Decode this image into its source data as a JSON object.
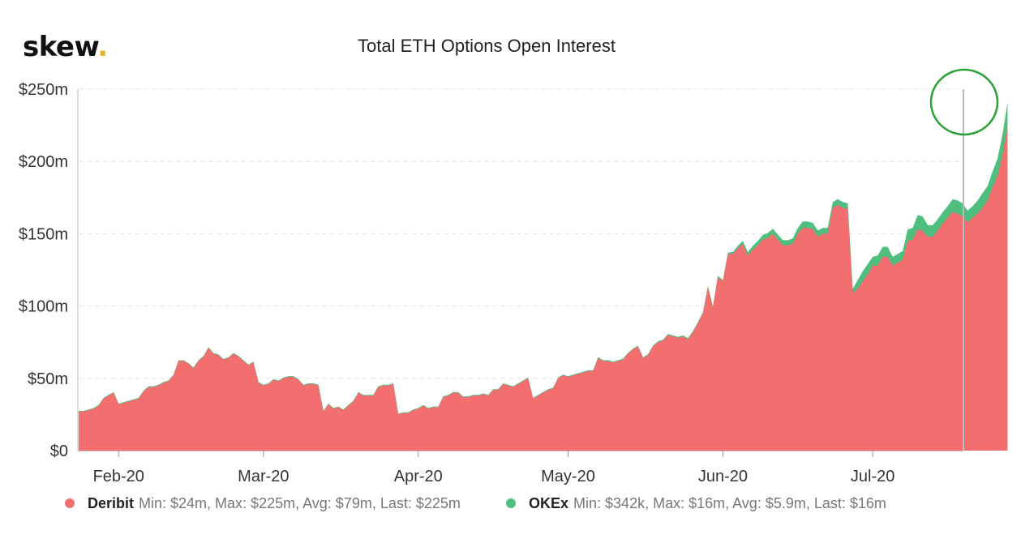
{
  "brand": {
    "name": "skew",
    "dot": "."
  },
  "chart_data": {
    "type": "area",
    "stacked": true,
    "title": "Total ETH Options Open Interest",
    "xlabel": "",
    "ylabel": "",
    "x_ticks": [
      "Feb-20",
      "Mar-20",
      "Apr-20",
      "May-20",
      "Jun-20",
      "Jul-20"
    ],
    "x_tick_days": [
      13,
      42,
      73,
      103,
      134,
      164
    ],
    "x_range_days": [
      5,
      182
    ],
    "y_ticks": [
      "$0",
      "$50m",
      "$100m",
      "$150m",
      "$200m",
      "$250m"
    ],
    "y_tick_values": [
      0,
      50,
      100,
      150,
      200,
      250
    ],
    "ylim": [
      0,
      250
    ],
    "grid": true,
    "legend_position": "bottom",
    "annotation": "green circle highlighting the latest value",
    "series": [
      {
        "name": "Deribit",
        "color": "#f36e6e",
        "stats": "Min: $24m, Max: $225m, Avg: $79m, Last: $225m",
        "points": [
          [
            5,
            27
          ],
          [
            6,
            27
          ],
          [
            7,
            28
          ],
          [
            8,
            29
          ],
          [
            9,
            31
          ],
          [
            10,
            36
          ],
          [
            11,
            38
          ],
          [
            12,
            40
          ],
          [
            13,
            32
          ],
          [
            14,
            33
          ],
          [
            15,
            34
          ],
          [
            16,
            35
          ],
          [
            17,
            36
          ],
          [
            18,
            41
          ],
          [
            19,
            44
          ],
          [
            20,
            44
          ],
          [
            21,
            45
          ],
          [
            22,
            47
          ],
          [
            23,
            48
          ],
          [
            24,
            52
          ],
          [
            25,
            62
          ],
          [
            26,
            62
          ],
          [
            27,
            60
          ],
          [
            28,
            57
          ],
          [
            29,
            62
          ],
          [
            30,
            65
          ],
          [
            31,
            71
          ],
          [
            32,
            67
          ],
          [
            33,
            66
          ],
          [
            34,
            63
          ],
          [
            35,
            64
          ],
          [
            36,
            67
          ],
          [
            37,
            65
          ],
          [
            38,
            62
          ],
          [
            39,
            59
          ],
          [
            40,
            61
          ],
          [
            41,
            47
          ],
          [
            42,
            45
          ],
          [
            43,
            46
          ],
          [
            44,
            49
          ],
          [
            45,
            48
          ],
          [
            46,
            50
          ],
          [
            47,
            51
          ],
          [
            48,
            51
          ],
          [
            49,
            49
          ],
          [
            50,
            45
          ],
          [
            51,
            46
          ],
          [
            52,
            46
          ],
          [
            53,
            45
          ],
          [
            54,
            27
          ],
          [
            55,
            32
          ],
          [
            56,
            29
          ],
          [
            57,
            30
          ],
          [
            58,
            28
          ],
          [
            59,
            31
          ],
          [
            60,
            34
          ],
          [
            61,
            40
          ],
          [
            62,
            38
          ],
          [
            63,
            38
          ],
          [
            64,
            38
          ],
          [
            65,
            44
          ],
          [
            66,
            45
          ],
          [
            67,
            45
          ],
          [
            68,
            46
          ],
          [
            69,
            25
          ],
          [
            70,
            26
          ],
          [
            71,
            26
          ],
          [
            72,
            28
          ],
          [
            73,
            29
          ],
          [
            74,
            31
          ],
          [
            75,
            29
          ],
          [
            76,
            30
          ],
          [
            77,
            30
          ],
          [
            78,
            37
          ],
          [
            79,
            38
          ],
          [
            80,
            40
          ],
          [
            81,
            40
          ],
          [
            82,
            37
          ],
          [
            83,
            37
          ],
          [
            84,
            38
          ],
          [
            85,
            38
          ],
          [
            86,
            39
          ],
          [
            87,
            38
          ],
          [
            88,
            42
          ],
          [
            89,
            42
          ],
          [
            90,
            46
          ],
          [
            91,
            45
          ],
          [
            92,
            44
          ],
          [
            93,
            46
          ],
          [
            94,
            48
          ],
          [
            95,
            50
          ],
          [
            96,
            36
          ],
          [
            97,
            38
          ],
          [
            98,
            40
          ],
          [
            99,
            42
          ],
          [
            100,
            43
          ],
          [
            101,
            50
          ],
          [
            102,
            52
          ],
          [
            103,
            51
          ],
          [
            104,
            52
          ],
          [
            105,
            53
          ],
          [
            106,
            54
          ],
          [
            107,
            55
          ],
          [
            108,
            55
          ],
          [
            109,
            64
          ],
          [
            110,
            62
          ],
          [
            111,
            62
          ],
          [
            112,
            61
          ],
          [
            113,
            62
          ],
          [
            114,
            63
          ],
          [
            115,
            67
          ],
          [
            116,
            70
          ],
          [
            117,
            72
          ],
          [
            118,
            64
          ],
          [
            119,
            66
          ],
          [
            120,
            72
          ],
          [
            121,
            75
          ],
          [
            122,
            76
          ],
          [
            123,
            80
          ],
          [
            124,
            79
          ],
          [
            125,
            78
          ],
          [
            126,
            79
          ],
          [
            127,
            77
          ],
          [
            128,
            82
          ],
          [
            129,
            88
          ],
          [
            130,
            95
          ],
          [
            131,
            113
          ],
          [
            132,
            99
          ],
          [
            133,
            120
          ],
          [
            134,
            117
          ],
          [
            135,
            136
          ],
          [
            136,
            136
          ],
          [
            137,
            140
          ],
          [
            138,
            143
          ],
          [
            139,
            135
          ],
          [
            140,
            139
          ],
          [
            141,
            142
          ],
          [
            142,
            146
          ],
          [
            143,
            147
          ],
          [
            144,
            150
          ],
          [
            145,
            146
          ],
          [
            146,
            142
          ],
          [
            147,
            142
          ],
          [
            148,
            143
          ],
          [
            149,
            150
          ],
          [
            150,
            154
          ],
          [
            151,
            154
          ],
          [
            152,
            153
          ],
          [
            153,
            148
          ],
          [
            154,
            150
          ],
          [
            155,
            150
          ],
          [
            156,
            168
          ],
          [
            157,
            170
          ],
          [
            158,
            168
          ],
          [
            159,
            167
          ],
          [
            160,
            109
          ],
          [
            161,
            112
          ],
          [
            162,
            117
          ],
          [
            163,
            122
          ],
          [
            164,
            128
          ],
          [
            165,
            128
          ],
          [
            166,
            134
          ],
          [
            167,
            134
          ],
          [
            168,
            128
          ],
          [
            169,
            130
          ],
          [
            170,
            132
          ],
          [
            171,
            145
          ],
          [
            172,
            146
          ],
          [
            173,
            153
          ],
          [
            174,
            152
          ],
          [
            175,
            148
          ],
          [
            176,
            148
          ],
          [
            177,
            152
          ],
          [
            178,
            157
          ],
          [
            179,
            161
          ],
          [
            180,
            165
          ],
          [
            181,
            164
          ],
          [
            182,
            162
          ],
          [
            183,
            158
          ],
          [
            184,
            161
          ],
          [
            185,
            164
          ],
          [
            186,
            168
          ],
          [
            187,
            173
          ],
          [
            188,
            182
          ],
          [
            189,
            190
          ],
          [
            190,
            205
          ],
          [
            191,
            225
          ]
        ]
      },
      {
        "name": "OKEx",
        "color": "#4fbf80",
        "stats": "Min: $342k, Max: $16m, Avg: $5.9m, Last: $16m",
        "points": [
          [
            5,
            0.5
          ],
          [
            60,
            0.5
          ],
          [
            100,
            0.5
          ],
          [
            120,
            0.6
          ],
          [
            130,
            0.8
          ],
          [
            135,
            1
          ],
          [
            138,
            2
          ],
          [
            141,
            3
          ],
          [
            143,
            3.5
          ],
          [
            145,
            3.5
          ],
          [
            147,
            3.5
          ],
          [
            149,
            4
          ],
          [
            150,
            4.5
          ],
          [
            152,
            4.5
          ],
          [
            154,
            4
          ],
          [
            156,
            4
          ],
          [
            158,
            4
          ],
          [
            159,
            4
          ],
          [
            160,
            3
          ],
          [
            161,
            6
          ],
          [
            162,
            7
          ],
          [
            163,
            7
          ],
          [
            164,
            6
          ],
          [
            165,
            7
          ],
          [
            166,
            7
          ],
          [
            167,
            7
          ],
          [
            168,
            6
          ],
          [
            169,
            6
          ],
          [
            170,
            6
          ],
          [
            171,
            8
          ],
          [
            172,
            8
          ],
          [
            173,
            10
          ],
          [
            174,
            10
          ],
          [
            175,
            8
          ],
          [
            176,
            8
          ],
          [
            177,
            8
          ],
          [
            178,
            8
          ],
          [
            179,
            8
          ],
          [
            180,
            9
          ],
          [
            181,
            9
          ],
          [
            182,
            9
          ],
          [
            183,
            8
          ],
          [
            184,
            8
          ],
          [
            185,
            9
          ],
          [
            186,
            10
          ],
          [
            187,
            10
          ],
          [
            188,
            11
          ],
          [
            189,
            12
          ],
          [
            190,
            14
          ],
          [
            191,
            16
          ]
        ]
      }
    ]
  }
}
